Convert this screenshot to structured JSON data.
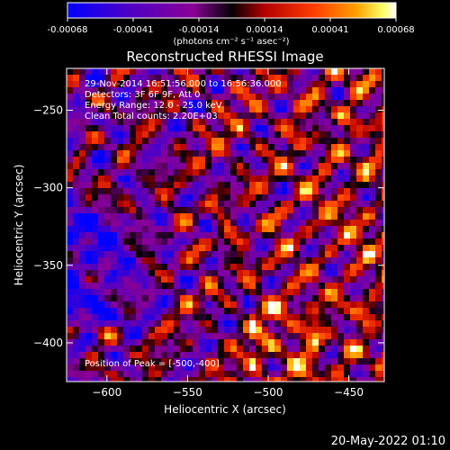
{
  "colorbar": {
    "tick_labels": [
      "-0.00068",
      "-0.00041",
      "-0.00014",
      "0.00014",
      "0.00041",
      "0.00068"
    ],
    "unit_label": "(photons cm⁻² s⁻¹ asec⁻²)",
    "colors": [
      "#0000ff",
      "#4b00c8",
      "#8a0096",
      "#000000",
      "#b40000",
      "#ff3c00",
      "#ffa000",
      "#ffff64",
      "#ffffff"
    ]
  },
  "plot": {
    "title": "Reconstructed RHESSI Image",
    "xlabel": "Heliocentric X (arcsec)",
    "ylabel": "Heliocentric Y (arcsec)",
    "xlim": [
      -625,
      -428
    ],
    "ylim": [
      -425,
      -223
    ],
    "x_ticks": [
      -600,
      -550,
      -500,
      -450
    ],
    "y_ticks": [
      -250,
      -300,
      -350,
      -400
    ],
    "x_tick_labels": [
      "−600",
      "−550",
      "−500",
      "−450"
    ],
    "y_tick_labels": [
      "−250",
      "−300",
      "−350",
      "−400"
    ],
    "annotations": {
      "time": "29-Nov-2014 16:51:56.000 to 16:56:36.000",
      "detectors": "Detectors: 3F 6F 9F, Att 0",
      "energy": "Energy Range: 12.0 - 25.0 keV",
      "clean": "Clean     Total counts: 2.20E+03",
      "peak": "Position of Peak = [-500,-400]"
    }
  },
  "footer": {
    "date": "20-May-2022 01:10"
  }
}
